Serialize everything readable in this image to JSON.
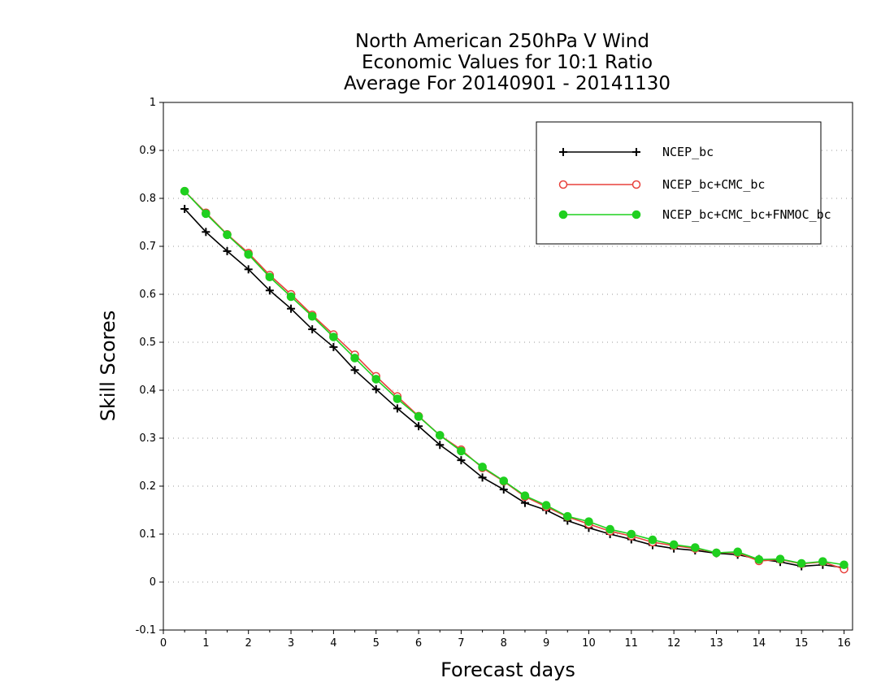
{
  "chart_data": {
    "type": "line",
    "title_lines": [
      "North American 250hPa V Wind",
      "Economic Values for 10:1 Ratio",
      "Average For 20140901 - 20141130"
    ],
    "xlabel": "Forecast days",
    "ylabel": "Skill Scores",
    "xlim": [
      0,
      16.2
    ],
    "ylim": [
      -0.1,
      1
    ],
    "x_ticks": [
      "0",
      "1",
      "2",
      "3",
      "4",
      "5",
      "6",
      "7",
      "8",
      "9",
      "10",
      "11",
      "12",
      "13",
      "14",
      "15",
      "16"
    ],
    "y_ticks": [
      "-0.1",
      "0",
      "0.1",
      "0.2",
      "0.3",
      "0.4",
      "0.5",
      "0.6",
      "0.7",
      "0.8",
      "0.9",
      "1"
    ],
    "grid": "dotted horizontal",
    "legend_position": "top-right",
    "x": [
      0.5,
      1,
      1.5,
      2,
      2.5,
      3,
      3.5,
      4,
      4.5,
      5,
      5.5,
      6,
      6.5,
      7,
      7.5,
      8,
      8.5,
      9,
      9.5,
      10,
      10.5,
      11,
      11.5,
      12,
      12.5,
      13,
      13.5,
      14,
      14.5,
      15,
      15.5,
      16
    ],
    "series": [
      {
        "name": "NCEP_bc",
        "color": "#000000",
        "marker": "plus",
        "values": [
          0.778,
          0.73,
          0.69,
          0.652,
          0.608,
          0.57,
          0.527,
          0.49,
          0.442,
          0.402,
          0.362,
          0.325,
          0.286,
          0.254,
          0.218,
          0.193,
          0.165,
          0.15,
          0.128,
          0.113,
          0.1,
          0.089,
          0.077,
          0.07,
          0.066,
          0.06,
          0.057,
          0.048,
          0.042,
          0.033,
          0.036,
          0.03
        ]
      },
      {
        "name": "NCEP_bc+CMC_bc",
        "color": "#e8413c",
        "marker": "open-circle",
        "values": [
          0.815,
          0.77,
          0.725,
          0.686,
          0.64,
          0.6,
          0.557,
          0.516,
          0.474,
          0.429,
          0.387,
          0.346,
          0.306,
          0.276,
          0.238,
          0.21,
          0.178,
          0.157,
          0.136,
          0.121,
          0.106,
          0.096,
          0.083,
          0.076,
          0.07,
          0.061,
          0.061,
          0.044,
          0.047,
          0.038,
          0.042,
          0.027
        ]
      },
      {
        "name": "NCEP_bc+CMC_bc+FNMOC_bc",
        "color": "#1fd01f",
        "marker": "filled-circle",
        "values": [
          0.815,
          0.768,
          0.724,
          0.683,
          0.636,
          0.595,
          0.554,
          0.511,
          0.467,
          0.423,
          0.382,
          0.345,
          0.306,
          0.273,
          0.24,
          0.211,
          0.18,
          0.16,
          0.137,
          0.126,
          0.11,
          0.1,
          0.088,
          0.078,
          0.072,
          0.061,
          0.063,
          0.047,
          0.048,
          0.039,
          0.043,
          0.036
        ]
      }
    ]
  }
}
